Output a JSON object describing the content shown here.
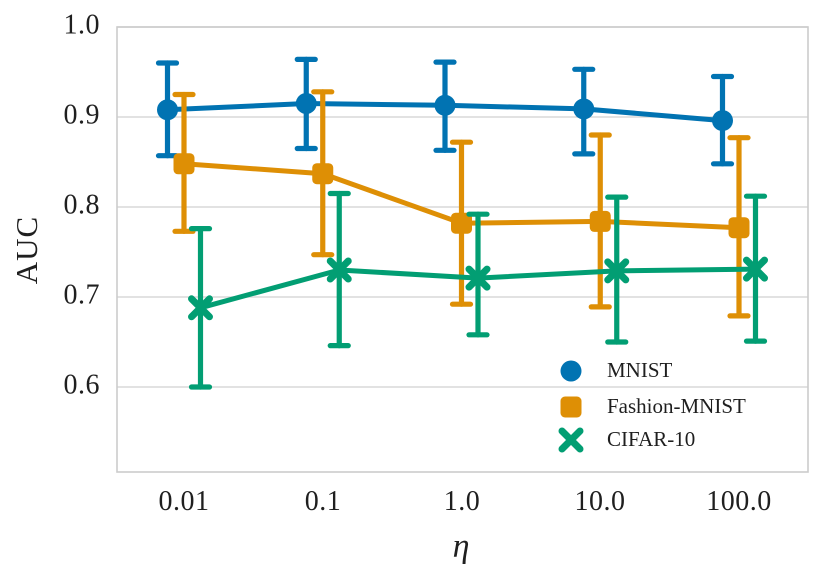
{
  "figure": {
    "background": "#ffffff",
    "text_color": "#1f1f1f",
    "grid_color": "#d9d9d9",
    "border_color": "#cccccc"
  },
  "chart_data": {
    "type": "line",
    "x_scale": "log",
    "x": [
      0.01,
      0.1,
      1.0,
      10.0,
      100.0
    ],
    "x_tick_labels": [
      "0.01",
      "0.1",
      "1.0",
      "10.0",
      "100.0"
    ],
    "y_ticks": [
      0.6,
      0.7,
      0.8,
      0.9,
      1.0
    ],
    "y_tick_labels": [
      "0.6",
      "0.7",
      "0.8",
      "0.9",
      "1.0"
    ],
    "ylim": [
      0.5,
      1.0
    ],
    "xlabel": "η",
    "ylabel": "AUC",
    "grid": "horizontal",
    "legend_position": "lower right",
    "error_bars": true,
    "series": [
      {
        "name": "MNIST",
        "marker": "circle",
        "color": "#0173b2",
        "values": [
          0.908,
          0.915,
          0.913,
          0.909,
          0.896
        ],
        "err_low": [
          0.857,
          0.865,
          0.863,
          0.859,
          0.848
        ],
        "err_high": [
          0.96,
          0.964,
          0.961,
          0.953,
          0.945
        ]
      },
      {
        "name": "Fashion-MNIST",
        "marker": "square",
        "color": "#de8f05",
        "values": [
          0.848,
          0.837,
          0.782,
          0.784,
          0.777
        ],
        "err_low": [
          0.773,
          0.747,
          0.692,
          0.689,
          0.679
        ],
        "err_high": [
          0.925,
          0.928,
          0.872,
          0.88,
          0.877
        ]
      },
      {
        "name": "CIFAR-10",
        "marker": "x",
        "color": "#029e73",
        "values": [
          0.688,
          0.73,
          0.721,
          0.729,
          0.731
        ],
        "err_low": [
          0.6,
          0.646,
          0.658,
          0.65,
          0.651
        ],
        "err_high": [
          0.776,
          0.815,
          0.792,
          0.811,
          0.812
        ]
      }
    ]
  }
}
